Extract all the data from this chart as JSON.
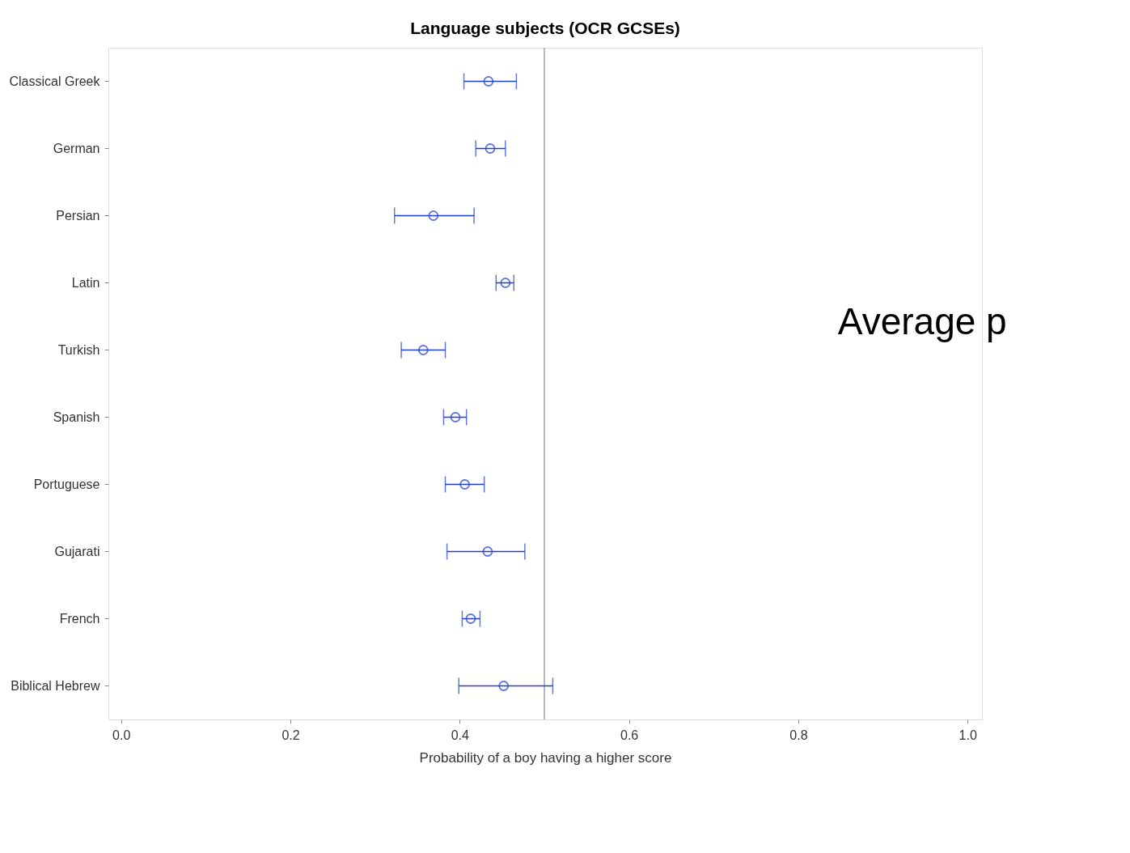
{
  "chart_data": {
    "type": "scatter",
    "orientation": "horizontal",
    "title": "Language subjects (OCR GCSEs)",
    "xlabel": "Probability of a boy having a higher score",
    "categories": [
      "Classical Greek",
      "German",
      "Persian",
      "Latin",
      "Turkish",
      "Spanish",
      "Portuguese",
      "Gujarati",
      "French",
      "Biblical Hebrew"
    ],
    "series": [
      {
        "color": "#1f3fd0",
        "values": [
          0.434,
          0.436,
          0.369,
          0.454,
          0.357,
          0.395,
          0.406,
          0.433,
          0.413,
          0.452
        ],
        "errors": [
          [
            0.405,
            0.467
          ],
          [
            0.419,
            0.454
          ],
          [
            0.323,
            0.417
          ],
          [
            0.443,
            0.464
          ],
          [
            0.331,
            0.383
          ],
          [
            0.381,
            0.408
          ],
          [
            0.383,
            0.429
          ],
          [
            0.385,
            0.477
          ],
          [
            0.403,
            0.424
          ],
          [
            0.399,
            0.51
          ]
        ]
      }
    ],
    "xlim": [
      -0.015,
      1.017
    ],
    "xticks": [
      {
        "value": 0,
        "label": "0.0"
      },
      {
        "value": 0.2,
        "label": "0.2"
      },
      {
        "value": 0.4,
        "label": "0.4"
      },
      {
        "value": 0.6,
        "label": "0.6"
      },
      {
        "value": 0.8,
        "label": "0.8"
      },
      {
        "value": 1,
        "label": "1.0"
      }
    ],
    "ref_lines": [
      {
        "axis": "x",
        "value": 0.5,
        "color": "#a0a0a0"
      }
    ],
    "annotations": [
      "Average p"
    ],
    "marker": "circle",
    "grid": false
  }
}
